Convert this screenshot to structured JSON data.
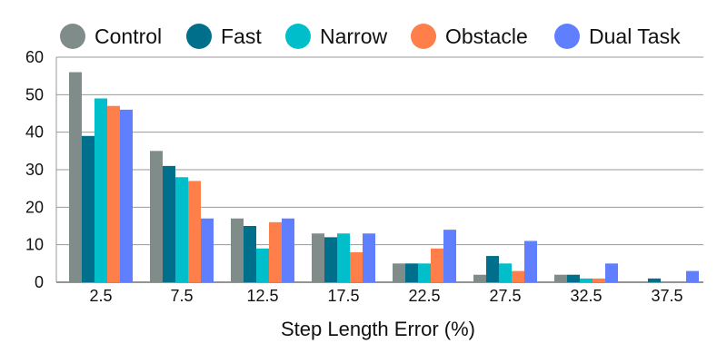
{
  "chart_data": {
    "type": "bar",
    "title": "",
    "xlabel": "Step Length Error (%)",
    "ylabel": "",
    "categories": [
      "2.5",
      "7.5",
      "12.5",
      "17.5",
      "22.5",
      "27.5",
      "32.5",
      "37.5"
    ],
    "ylim": [
      0,
      60
    ],
    "yticks": [
      "0",
      "10",
      "20",
      "30",
      "40",
      "50",
      "60"
    ],
    "grid": true,
    "legend_position": "top",
    "series": [
      {
        "name": "Control",
        "color": "#7f8c8a",
        "values": [
          56,
          35,
          17,
          13,
          5,
          2,
          2,
          0
        ]
      },
      {
        "name": "Fast",
        "color": "#006f8c",
        "values": [
          39,
          31,
          15,
          12,
          5,
          7,
          2,
          1
        ]
      },
      {
        "name": "Narrow",
        "color": "#00bfca",
        "values": [
          49,
          28,
          9,
          13,
          5,
          5,
          1,
          0
        ]
      },
      {
        "name": "Obstacle",
        "color": "#ff7f4a",
        "values": [
          47,
          27,
          16,
          8,
          9,
          3,
          1,
          0
        ]
      },
      {
        "name": "Dual Task",
        "color": "#5f7fff",
        "values": [
          46,
          17,
          17,
          13,
          14,
          11,
          5,
          3
        ]
      }
    ]
  }
}
